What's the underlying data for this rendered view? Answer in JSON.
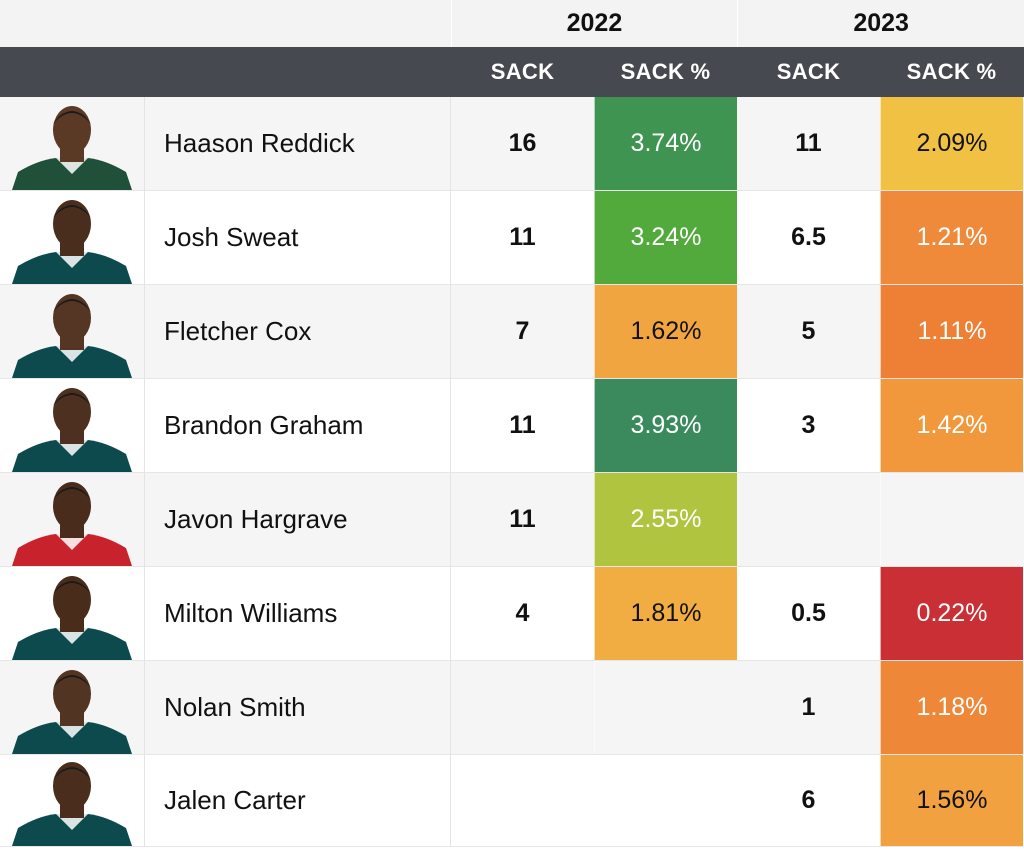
{
  "years": {
    "left": "2022",
    "right": "2023"
  },
  "columns": {
    "sack_2022": "SACK",
    "pct_2022": "SACK %",
    "sack_2023": "SACK",
    "pct_2023": "SACK %"
  },
  "players": [
    {
      "name": "Haason Reddick",
      "sack_2022": "16",
      "pct_2022": "3.74%",
      "pct_2022_color": "#3f9452",
      "sack_2023": "11",
      "pct_2023": "2.09%",
      "pct_2023_color": "#f0c142",
      "jersey": "#21503a",
      "skin": "#5a3a25"
    },
    {
      "name": "Josh Sweat",
      "sack_2022": "11",
      "pct_2022": "3.24%",
      "pct_2022_color": "#52aa3c",
      "sack_2023": "6.5",
      "pct_2023": "1.21%",
      "pct_2023_color": "#ee8a3a",
      "jersey": "#0d4a4e",
      "skin": "#4a2e1d"
    },
    {
      "name": "Fletcher Cox",
      "sack_2022": "7",
      "pct_2022": "1.62%",
      "pct_2022_color": "#f1a540",
      "sack_2023": "5",
      "pct_2023": "1.11%",
      "pct_2023_color": "#ee8035",
      "jersey": "#0d4a4e",
      "skin": "#553624"
    },
    {
      "name": "Brandon Graham",
      "sack_2022": "11",
      "pct_2022": "3.93%",
      "pct_2022_color": "#3a8a5e",
      "sack_2023": "3",
      "pct_2023": "1.42%",
      "pct_2023_color": "#f1983d",
      "jersey": "#0d4a4e",
      "skin": "#4e3020"
    },
    {
      "name": "Javon Hargrave",
      "sack_2022": "11",
      "pct_2022": "2.55%",
      "pct_2022_color": "#b0c43f",
      "sack_2023": "",
      "pct_2023": "",
      "pct_2023_color": "",
      "jersey": "#c8232c",
      "skin": "#4a2c1c"
    },
    {
      "name": "Milton Williams",
      "sack_2022": "4",
      "pct_2022": "1.81%",
      "pct_2022_color": "#f1ad42",
      "sack_2023": "0.5",
      "pct_2023": "0.22%",
      "pct_2023_color": "#c92f34",
      "jersey": "#0d4a4e",
      "skin": "#4a2c1b"
    },
    {
      "name": "Nolan Smith",
      "sack_2022": "",
      "pct_2022": "",
      "pct_2022_color": "",
      "sack_2023": "1",
      "pct_2023": "1.18%",
      "pct_2023_color": "#ee8738",
      "jersey": "#0d4a4e",
      "skin": "#523422"
    },
    {
      "name": "Jalen Carter",
      "sack_2022": "",
      "pct_2022": "",
      "pct_2022_color": "",
      "sack_2023": "6",
      "pct_2023": "1.56%",
      "pct_2023_color": "#f1a13f",
      "jersey": "#0d4a4e",
      "skin": "#4b2d1d"
    }
  ]
}
